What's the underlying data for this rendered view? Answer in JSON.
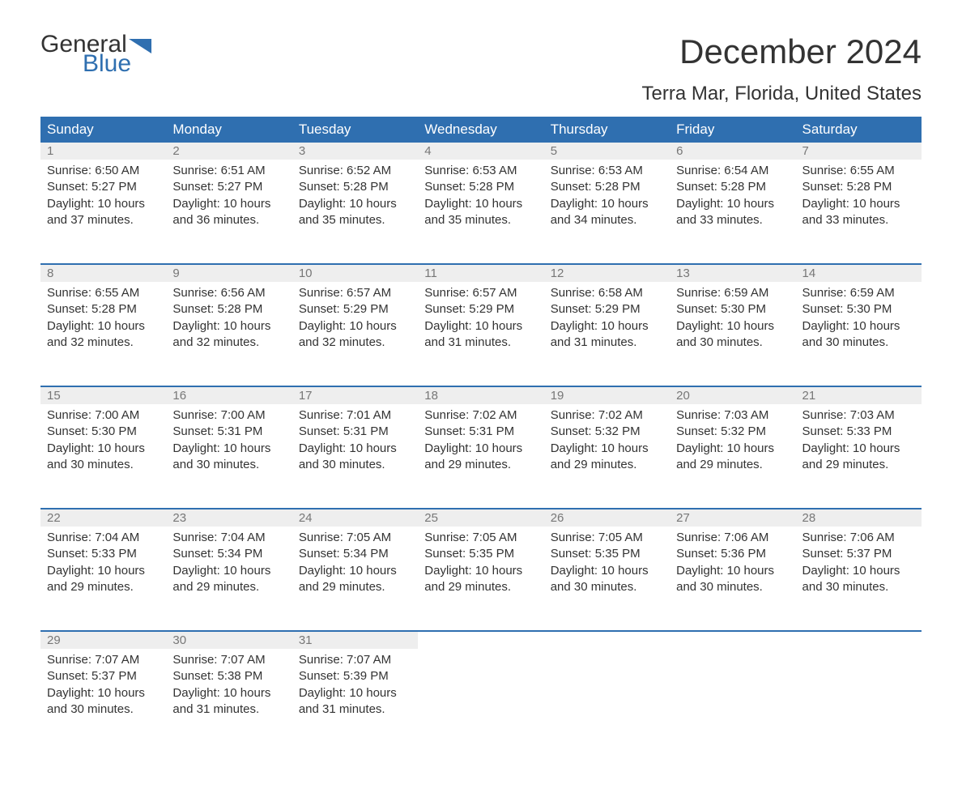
{
  "brand": {
    "general": "General",
    "blue": "Blue",
    "flag_color": "#2f6fb0"
  },
  "title": "December 2024",
  "location": "Terra Mar, Florida, United States",
  "colors": {
    "header_bg": "#2f6fb0",
    "header_text": "#ffffff",
    "daynum_bg": "#eeeeee",
    "daynum_text": "#777777",
    "body_text": "#333333",
    "rule": "#2f6fb0",
    "page_bg": "#ffffff"
  },
  "day_headers": [
    "Sunday",
    "Monday",
    "Tuesday",
    "Wednesday",
    "Thursday",
    "Friday",
    "Saturday"
  ],
  "weeks": [
    [
      {
        "n": "1",
        "sunrise": "Sunrise: 6:50 AM",
        "sunset": "Sunset: 5:27 PM",
        "d1": "Daylight: 10 hours",
        "d2": "and 37 minutes."
      },
      {
        "n": "2",
        "sunrise": "Sunrise: 6:51 AM",
        "sunset": "Sunset: 5:27 PM",
        "d1": "Daylight: 10 hours",
        "d2": "and 36 minutes."
      },
      {
        "n": "3",
        "sunrise": "Sunrise: 6:52 AM",
        "sunset": "Sunset: 5:28 PM",
        "d1": "Daylight: 10 hours",
        "d2": "and 35 minutes."
      },
      {
        "n": "4",
        "sunrise": "Sunrise: 6:53 AM",
        "sunset": "Sunset: 5:28 PM",
        "d1": "Daylight: 10 hours",
        "d2": "and 35 minutes."
      },
      {
        "n": "5",
        "sunrise": "Sunrise: 6:53 AM",
        "sunset": "Sunset: 5:28 PM",
        "d1": "Daylight: 10 hours",
        "d2": "and 34 minutes."
      },
      {
        "n": "6",
        "sunrise": "Sunrise: 6:54 AM",
        "sunset": "Sunset: 5:28 PM",
        "d1": "Daylight: 10 hours",
        "d2": "and 33 minutes."
      },
      {
        "n": "7",
        "sunrise": "Sunrise: 6:55 AM",
        "sunset": "Sunset: 5:28 PM",
        "d1": "Daylight: 10 hours",
        "d2": "and 33 minutes."
      }
    ],
    [
      {
        "n": "8",
        "sunrise": "Sunrise: 6:55 AM",
        "sunset": "Sunset: 5:28 PM",
        "d1": "Daylight: 10 hours",
        "d2": "and 32 minutes."
      },
      {
        "n": "9",
        "sunrise": "Sunrise: 6:56 AM",
        "sunset": "Sunset: 5:28 PM",
        "d1": "Daylight: 10 hours",
        "d2": "and 32 minutes."
      },
      {
        "n": "10",
        "sunrise": "Sunrise: 6:57 AM",
        "sunset": "Sunset: 5:29 PM",
        "d1": "Daylight: 10 hours",
        "d2": "and 32 minutes."
      },
      {
        "n": "11",
        "sunrise": "Sunrise: 6:57 AM",
        "sunset": "Sunset: 5:29 PM",
        "d1": "Daylight: 10 hours",
        "d2": "and 31 minutes."
      },
      {
        "n": "12",
        "sunrise": "Sunrise: 6:58 AM",
        "sunset": "Sunset: 5:29 PM",
        "d1": "Daylight: 10 hours",
        "d2": "and 31 minutes."
      },
      {
        "n": "13",
        "sunrise": "Sunrise: 6:59 AM",
        "sunset": "Sunset: 5:30 PM",
        "d1": "Daylight: 10 hours",
        "d2": "and 30 minutes."
      },
      {
        "n": "14",
        "sunrise": "Sunrise: 6:59 AM",
        "sunset": "Sunset: 5:30 PM",
        "d1": "Daylight: 10 hours",
        "d2": "and 30 minutes."
      }
    ],
    [
      {
        "n": "15",
        "sunrise": "Sunrise: 7:00 AM",
        "sunset": "Sunset: 5:30 PM",
        "d1": "Daylight: 10 hours",
        "d2": "and 30 minutes."
      },
      {
        "n": "16",
        "sunrise": "Sunrise: 7:00 AM",
        "sunset": "Sunset: 5:31 PM",
        "d1": "Daylight: 10 hours",
        "d2": "and 30 minutes."
      },
      {
        "n": "17",
        "sunrise": "Sunrise: 7:01 AM",
        "sunset": "Sunset: 5:31 PM",
        "d1": "Daylight: 10 hours",
        "d2": "and 30 minutes."
      },
      {
        "n": "18",
        "sunrise": "Sunrise: 7:02 AM",
        "sunset": "Sunset: 5:31 PM",
        "d1": "Daylight: 10 hours",
        "d2": "and 29 minutes."
      },
      {
        "n": "19",
        "sunrise": "Sunrise: 7:02 AM",
        "sunset": "Sunset: 5:32 PM",
        "d1": "Daylight: 10 hours",
        "d2": "and 29 minutes."
      },
      {
        "n": "20",
        "sunrise": "Sunrise: 7:03 AM",
        "sunset": "Sunset: 5:32 PM",
        "d1": "Daylight: 10 hours",
        "d2": "and 29 minutes."
      },
      {
        "n": "21",
        "sunrise": "Sunrise: 7:03 AM",
        "sunset": "Sunset: 5:33 PM",
        "d1": "Daylight: 10 hours",
        "d2": "and 29 minutes."
      }
    ],
    [
      {
        "n": "22",
        "sunrise": "Sunrise: 7:04 AM",
        "sunset": "Sunset: 5:33 PM",
        "d1": "Daylight: 10 hours",
        "d2": "and 29 minutes."
      },
      {
        "n": "23",
        "sunrise": "Sunrise: 7:04 AM",
        "sunset": "Sunset: 5:34 PM",
        "d1": "Daylight: 10 hours",
        "d2": "and 29 minutes."
      },
      {
        "n": "24",
        "sunrise": "Sunrise: 7:05 AM",
        "sunset": "Sunset: 5:34 PM",
        "d1": "Daylight: 10 hours",
        "d2": "and 29 minutes."
      },
      {
        "n": "25",
        "sunrise": "Sunrise: 7:05 AM",
        "sunset": "Sunset: 5:35 PM",
        "d1": "Daylight: 10 hours",
        "d2": "and 29 minutes."
      },
      {
        "n": "26",
        "sunrise": "Sunrise: 7:05 AM",
        "sunset": "Sunset: 5:35 PM",
        "d1": "Daylight: 10 hours",
        "d2": "and 30 minutes."
      },
      {
        "n": "27",
        "sunrise": "Sunrise: 7:06 AM",
        "sunset": "Sunset: 5:36 PM",
        "d1": "Daylight: 10 hours",
        "d2": "and 30 minutes."
      },
      {
        "n": "28",
        "sunrise": "Sunrise: 7:06 AM",
        "sunset": "Sunset: 5:37 PM",
        "d1": "Daylight: 10 hours",
        "d2": "and 30 minutes."
      }
    ],
    [
      {
        "n": "29",
        "sunrise": "Sunrise: 7:07 AM",
        "sunset": "Sunset: 5:37 PM",
        "d1": "Daylight: 10 hours",
        "d2": "and 30 minutes."
      },
      {
        "n": "30",
        "sunrise": "Sunrise: 7:07 AM",
        "sunset": "Sunset: 5:38 PM",
        "d1": "Daylight: 10 hours",
        "d2": "and 31 minutes."
      },
      {
        "n": "31",
        "sunrise": "Sunrise: 7:07 AM",
        "sunset": "Sunset: 5:39 PM",
        "d1": "Daylight: 10 hours",
        "d2": "and 31 minutes."
      },
      null,
      null,
      null,
      null
    ]
  ]
}
